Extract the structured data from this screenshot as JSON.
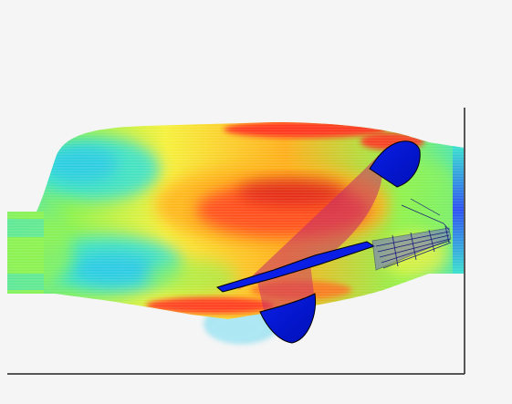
{
  "image": {
    "subject": "cfd-flow-streamlines",
    "background_color": "#f5f5f5",
    "frame_color": "#222222"
  },
  "streamlines": {
    "colormap": [
      "#1f3cff",
      "#19b7ff",
      "#35e0d0",
      "#8cf24b",
      "#f6f03a",
      "#ffae19",
      "#ff2e1a",
      "#c40010"
    ]
  },
  "damper": {
    "disc_color": "#0a1ee6",
    "disc_edge_color": "#000000",
    "shadow_color": "#c32b6b"
  }
}
